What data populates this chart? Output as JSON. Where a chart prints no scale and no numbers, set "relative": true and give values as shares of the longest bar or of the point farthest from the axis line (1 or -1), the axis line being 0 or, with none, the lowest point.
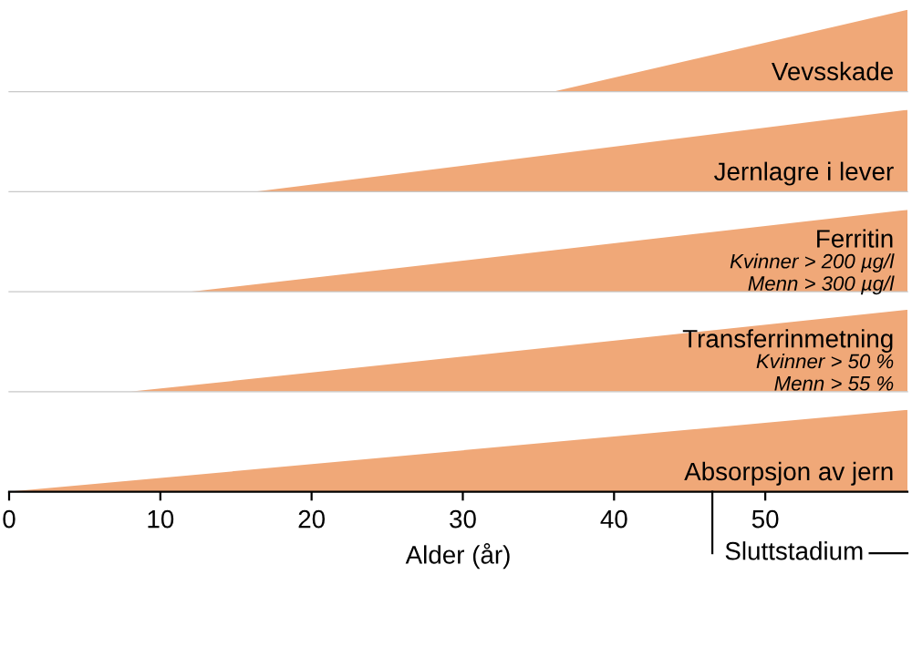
{
  "chart_data": [
    {
      "type": "area",
      "relative": true,
      "x": [
        36,
        59.4
      ],
      "values": [
        0,
        1
      ],
      "color": "#f0a878",
      "xlim": [
        0,
        59.4
      ],
      "tick_labels": false,
      "grid": false,
      "annotations": [
        "Vevsskade"
      ]
    },
    {
      "type": "area",
      "relative": true,
      "x": [
        16.3,
        59.4
      ],
      "values": [
        0,
        1
      ],
      "color": "#f0a878",
      "xlim": [
        0,
        59.4
      ],
      "tick_labels": false,
      "grid": false,
      "annotations": [
        "Jernlagre i lever"
      ]
    },
    {
      "type": "area",
      "relative": true,
      "x": [
        12,
        59.4
      ],
      "values": [
        0,
        1
      ],
      "color": "#f0a878",
      "xlim": [
        0,
        59.4
      ],
      "tick_labels": false,
      "grid": false,
      "annotations": [
        "Ferritin",
        "Kvinner > 200 µg/l",
        "Menn > 300 µg/l"
      ]
    },
    {
      "type": "area",
      "relative": true,
      "x": [
        8,
        59.4
      ],
      "values": [
        0,
        1
      ],
      "color": "#f0a878",
      "xlim": [
        0,
        59.4
      ],
      "tick_labels": false,
      "grid": false,
      "annotations": [
        "Transferrinmetning",
        "Kvinner > 50 %",
        "Menn > 55 %"
      ]
    },
    {
      "type": "area",
      "relative": true,
      "x": [
        0,
        59.4
      ],
      "values": [
        0,
        1
      ],
      "color": "#f0a878",
      "xlim": [
        0,
        59.4
      ],
      "xticks": [
        0,
        10,
        20,
        30,
        40,
        50
      ],
      "tick_labels": "x",
      "grid": false,
      "xlabel": "Alder (år)",
      "annotations": [
        "Absorpsjon av jern"
      ],
      "ref_lines": [
        {
          "axis": "x",
          "value": 46.5,
          "label": "Sluttstadium"
        }
      ]
    }
  ]
}
